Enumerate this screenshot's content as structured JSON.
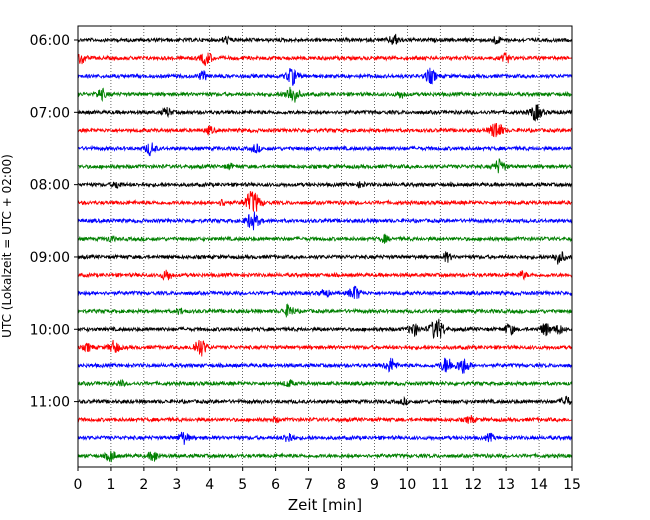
{
  "chart_data": {
    "type": "line",
    "title": "",
    "xlabel": "Zeit  [min]",
    "ylabel": "UTC (Lokalzeit = UTC + 02:00)",
    "xlim": [
      0,
      15
    ],
    "x_ticks": [
      0,
      1,
      2,
      3,
      4,
      5,
      6,
      7,
      8,
      9,
      10,
      11,
      12,
      13,
      14,
      15
    ],
    "y_ticks": [
      {
        "row": 0,
        "label": "06:00"
      },
      {
        "row": 4,
        "label": "07:00"
      },
      {
        "row": 8,
        "label": "08:00"
      },
      {
        "row": 12,
        "label": "09:00"
      },
      {
        "row": 16,
        "label": "10:00"
      },
      {
        "row": 20,
        "label": "11:00"
      }
    ],
    "grid": "vertical dotted",
    "row_colors": [
      "#000000",
      "#ff0000",
      "#0000ff",
      "#008000"
    ],
    "rows": [
      {
        "start": "06:00",
        "color": "#000000",
        "events": [
          [
            4.5,
            0.8
          ],
          [
            9.6,
            1.2
          ],
          [
            12.7,
            0.9
          ]
        ]
      },
      {
        "start": "06:15",
        "color": "#ff0000",
        "events": [
          [
            0.1,
            1.2
          ],
          [
            3.9,
            1.5
          ],
          [
            13.0,
            1.0
          ]
        ]
      },
      {
        "start": "06:30",
        "color": "#0000ff",
        "events": [
          [
            3.8,
            1.0
          ],
          [
            6.5,
            1.8
          ],
          [
            10.7,
            1.6
          ]
        ]
      },
      {
        "start": "06:45",
        "color": "#008000",
        "events": [
          [
            0.7,
            1.2
          ],
          [
            6.5,
            2.0
          ],
          [
            9.8,
            0.8
          ]
        ]
      },
      {
        "start": "07:00",
        "color": "#000000",
        "events": [
          [
            2.7,
            1.0
          ],
          [
            13.9,
            1.8
          ]
        ]
      },
      {
        "start": "07:15",
        "color": "#ff0000",
        "events": [
          [
            4.0,
            0.8
          ],
          [
            12.7,
            2.0
          ]
        ]
      },
      {
        "start": "07:30",
        "color": "#0000ff",
        "events": [
          [
            2.2,
            1.4
          ],
          [
            5.4,
            0.9
          ]
        ]
      },
      {
        "start": "07:45",
        "color": "#008000",
        "events": [
          [
            4.6,
            0.6
          ],
          [
            12.8,
            1.6
          ]
        ]
      },
      {
        "start": "08:00",
        "color": "#000000",
        "events": [
          [
            1.2,
            0.8
          ],
          [
            8.6,
            0.6
          ]
        ]
      },
      {
        "start": "08:15",
        "color": "#ff0000",
        "events": [
          [
            4.4,
            0.7
          ],
          [
            5.3,
            2.6
          ]
        ]
      },
      {
        "start": "08:30",
        "color": "#0000ff",
        "events": [
          [
            5.3,
            2.0
          ]
        ]
      },
      {
        "start": "08:45",
        "color": "#008000",
        "events": [
          [
            1.0,
            0.6
          ],
          [
            9.3,
            0.8
          ]
        ]
      },
      {
        "start": "09:00",
        "color": "#000000",
        "events": [
          [
            11.2,
            1.0
          ],
          [
            14.6,
            1.5
          ]
        ]
      },
      {
        "start": "09:15",
        "color": "#ff0000",
        "events": [
          [
            2.7,
            1.2
          ],
          [
            13.5,
            0.8
          ]
        ]
      },
      {
        "start": "09:30",
        "color": "#0000ff",
        "events": [
          [
            7.5,
            0.9
          ],
          [
            8.4,
            1.6
          ]
        ]
      },
      {
        "start": "09:45",
        "color": "#008000",
        "events": [
          [
            6.4,
            1.4
          ],
          [
            3.1,
            0.6
          ]
        ]
      },
      {
        "start": "10:00",
        "color": "#000000",
        "events": [
          [
            10.2,
            1.4
          ],
          [
            10.9,
            2.4
          ],
          [
            13.1,
            1.2
          ],
          [
            14.2,
            1.4
          ],
          [
            14.6,
            1.0
          ]
        ]
      },
      {
        "start": "10:15",
        "color": "#ff0000",
        "events": [
          [
            1.1,
            1.4
          ],
          [
            3.7,
            2.0
          ],
          [
            0.3,
            0.8
          ]
        ]
      },
      {
        "start": "10:30",
        "color": "#0000ff",
        "events": [
          [
            9.5,
            1.6
          ],
          [
            11.2,
            1.8
          ],
          [
            11.7,
            1.8
          ]
        ]
      },
      {
        "start": "10:45",
        "color": "#008000",
        "events": [
          [
            1.3,
            0.6
          ],
          [
            6.4,
            0.8
          ]
        ]
      },
      {
        "start": "11:00",
        "color": "#000000",
        "events": [
          [
            14.8,
            1.2
          ],
          [
            9.9,
            0.6
          ]
        ]
      },
      {
        "start": "11:15",
        "color": "#ff0000",
        "events": [
          [
            11.9,
            0.8
          ],
          [
            6.0,
            0.5
          ]
        ]
      },
      {
        "start": "11:30",
        "color": "#0000ff",
        "events": [
          [
            3.2,
            1.4
          ],
          [
            6.4,
            1.2
          ],
          [
            12.5,
            0.8
          ]
        ]
      },
      {
        "start": "11:45",
        "color": "#008000",
        "events": [
          [
            1.0,
            1.2
          ],
          [
            2.3,
            1.2
          ]
        ]
      }
    ]
  }
}
